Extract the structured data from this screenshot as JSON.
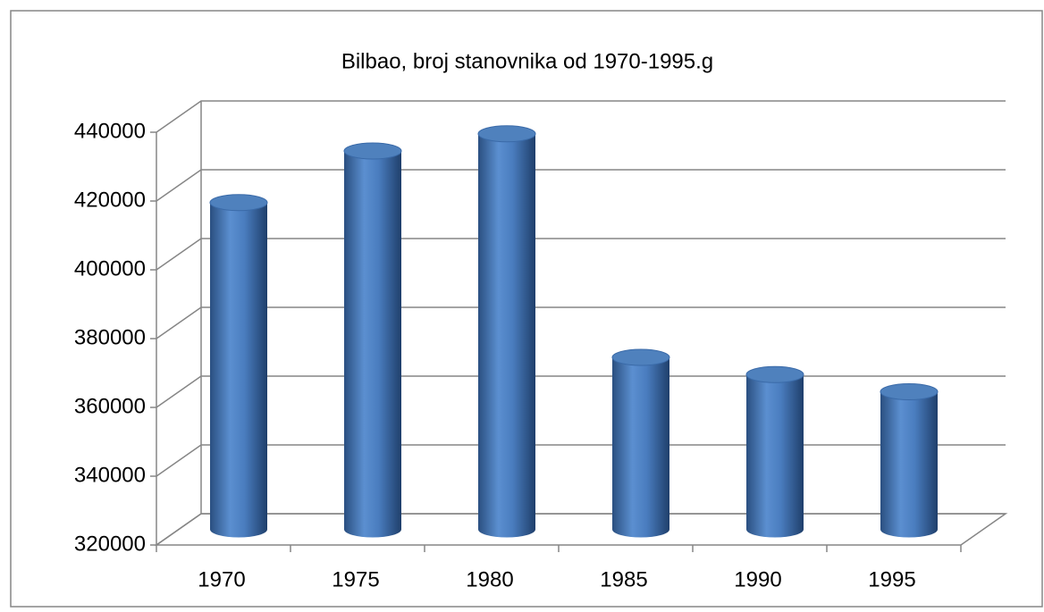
{
  "chart_data": {
    "type": "bar",
    "title": "Bilbao, broj stanovnika od 1970-1995.g",
    "categories": [
      "1970",
      "1975",
      "1980",
      "1985",
      "1990",
      "1995"
    ],
    "values": [
      415000,
      430000,
      435000,
      370000,
      365000,
      360000
    ],
    "color": "#4f81bd",
    "ylim": [
      320000,
      440000
    ],
    "yticks": [
      320000,
      340000,
      360000,
      380000,
      400000,
      420000,
      440000
    ],
    "grid": true
  }
}
